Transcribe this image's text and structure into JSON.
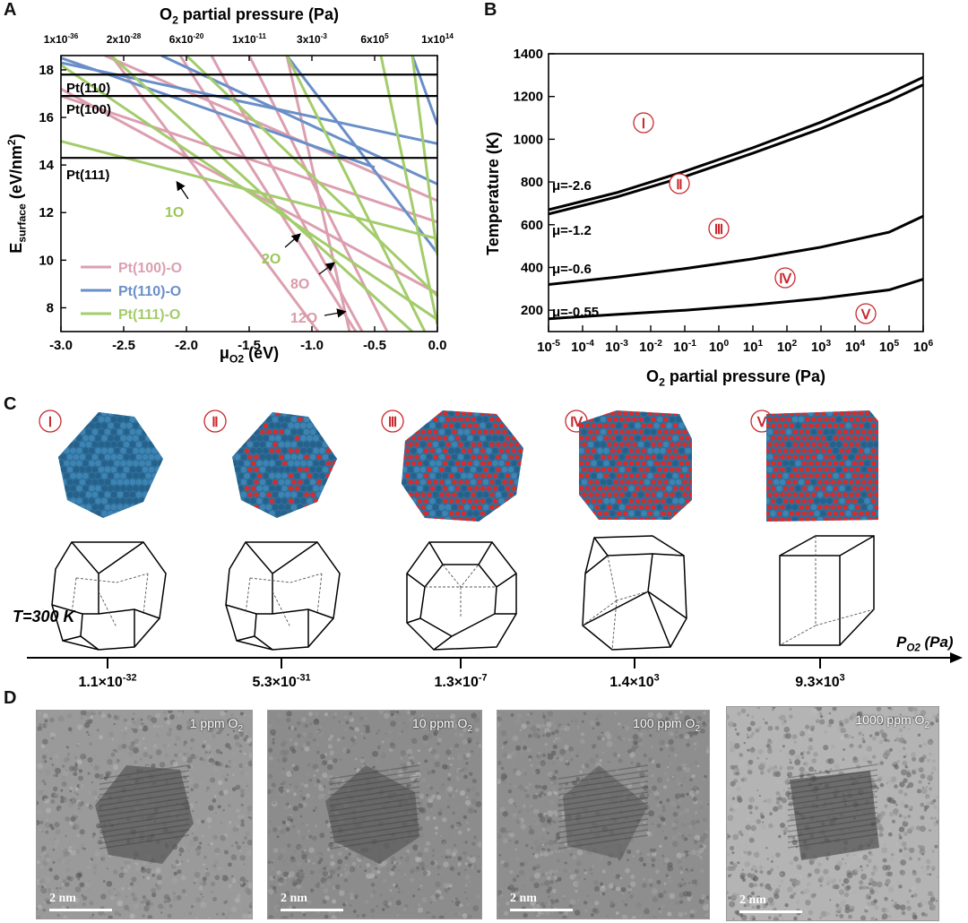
{
  "panels": {
    "a": "A",
    "b": "B",
    "c": "C",
    "d": "D"
  },
  "panelA": {
    "top_axis_title": "O2 partial pressure (Pa)",
    "top_ticks": [
      "1x10-36",
      "2x10-28",
      "6x10-20",
      "1x10-11",
      "3x10-3",
      "6x105",
      "1x1014"
    ],
    "xlabel": "μO2 (eV)",
    "ylabel": "Esurface (eV/nm2)",
    "x_ticks": [
      "-3.0",
      "-2.5",
      "-2.0",
      "-1.5",
      "-1.0",
      "-0.5",
      "0.0"
    ],
    "y_ticks": [
      "8",
      "10",
      "12",
      "14",
      "16",
      "18"
    ],
    "hlines": [
      {
        "label": "Pt(110)",
        "y": 17.8
      },
      {
        "label": "Pt(100)",
        "y": 16.9
      },
      {
        "label": "Pt(111)",
        "y": 14.3
      }
    ],
    "annotations": [
      {
        "text": "1O",
        "color": "#9cc65a"
      },
      {
        "text": "2O",
        "color": "#9cc65a"
      },
      {
        "text": "8O",
        "color": "#d99aa8"
      },
      {
        "text": "12O",
        "color": "#d99aa8"
      }
    ],
    "legend": [
      {
        "label": "Pt(100)-O",
        "color": "#dc9fb0"
      },
      {
        "label": "Pt(110)-O",
        "color": "#6a8fc8"
      },
      {
        "label": "Pt(111)-O",
        "color": "#a3cc6a"
      }
    ],
    "colors": {
      "pink": "#dc9fb0",
      "blue": "#6a8fc8",
      "green": "#a3cc6a"
    }
  },
  "chart_data": [
    {
      "type": "line",
      "title": "",
      "xlabel": "μO2 (eV)",
      "ylabel": "Esurface (eV/nm2)",
      "xlim": [
        -3.0,
        0.0
      ],
      "ylim": [
        7.0,
        18.6
      ],
      "series": [
        {
          "name": "Pt(100)-O",
          "segments": [
            [
              [
                -2.65,
                18.6
              ],
              [
                0.0,
                12.5
              ]
            ],
            [
              [
                -2.6,
                18.6
              ],
              [
                -0.95,
                7.0
              ]
            ],
            [
              [
                -2.05,
                18.6
              ],
              [
                -0.65,
                7.0
              ]
            ],
            [
              [
                -1.8,
                18.6
              ],
              [
                -0.6,
                7.0
              ]
            ],
            [
              [
                -1.5,
                18.6
              ],
              [
                -0.4,
                7.0
              ]
            ],
            [
              [
                -3.0,
                17.2
              ],
              [
                0.0,
                8.6
              ]
            ],
            [
              [
                -3.0,
                16.9
              ],
              [
                0.0,
                11.6
              ]
            ],
            [
              [
                -1.2,
                18.6
              ],
              [
                -0.7,
                7.0
              ]
            ]
          ]
        },
        {
          "name": "Pt(110)-O",
          "segments": [
            [
              [
                -3.0,
                18.3
              ],
              [
                0.0,
                14.9
              ]
            ],
            [
              [
                -3.0,
                18.5
              ],
              [
                -0.5,
                13.9
              ]
            ],
            [
              [
                -2.2,
                18.6
              ],
              [
                0.0,
                13.2
              ]
            ],
            [
              [
                -1.2,
                18.6
              ],
              [
                0.0,
                10.3
              ]
            ],
            [
              [
                -0.2,
                18.6
              ],
              [
                0.0,
                15.7
              ]
            ]
          ]
        },
        {
          "name": "Pt(111)-O",
          "segments": [
            [
              [
                -3.0,
                15.0
              ],
              [
                0.0,
                10.9
              ]
            ],
            [
              [
                -3.0,
                18.2
              ],
              [
                0.0,
                7.5
              ]
            ],
            [
              [
                -2.0,
                18.6
              ],
              [
                0.0,
                8.5
              ]
            ],
            [
              [
                -0.45,
                18.6
              ],
              [
                0.0,
                7.3
              ]
            ],
            [
              [
                -0.2,
                18.6
              ],
              [
                0.0,
                10.2
              ]
            ],
            [
              [
                -2.6,
                18.6
              ],
              [
                -0.2,
                7.0
              ]
            ],
            [
              [
                -1.2,
                18.6
              ],
              [
                -0.1,
                7.0
              ]
            ]
          ]
        }
      ]
    },
    {
      "type": "line",
      "title": "",
      "xlabel": "O2 partial pressure (Pa)",
      "ylabel": "Temperature (K)",
      "xscale": "log",
      "xlim": [
        1e-05,
        1000000.0
      ],
      "ylim": [
        100,
        1400
      ],
      "x_ticks": [
        "10-5",
        "10-4",
        "10-3",
        "10-2",
        "10-1",
        "100",
        "101",
        "102",
        "103",
        "104",
        "105",
        "106"
      ],
      "y_ticks": [
        "200",
        "400",
        "600",
        "800",
        "1000",
        "1200",
        "1400"
      ],
      "series": [
        {
          "name": "μ=-2.6",
          "x": [
            1e-05,
            0.001,
            0.1,
            10.0,
            1000.0,
            100000.0,
            1000000.0
          ],
          "y": [
            670,
            750,
            850,
            960,
            1080,
            1215,
            1290
          ]
        },
        {
          "name": "",
          "x": [
            1e-05,
            0.001,
            0.1,
            10.0,
            1000.0,
            100000.0,
            1000000.0
          ],
          "y": [
            650,
            730,
            825,
            935,
            1050,
            1180,
            1255
          ]
        },
        {
          "name": "μ=-1.2",
          "x": [
            1e-05,
            0.001,
            0.1,
            10.0,
            1000.0,
            100000.0,
            1000000.0
          ],
          "y": [
            320,
            355,
            395,
            440,
            495,
            565,
            640
          ]
        },
        {
          "name": "μ=-0.55",
          "x": [
            1e-05,
            0.001,
            0.1,
            10.0,
            1000.0,
            100000.0,
            1000000.0
          ],
          "y": [
            160,
            180,
            200,
            225,
            255,
            295,
            345
          ]
        }
      ],
      "curve_labels": [
        "μ=-2.6",
        "μ=-1.2",
        "μ=-0.6",
        "μ=-0.55"
      ],
      "regions": [
        "Ⅰ",
        "Ⅱ",
        "Ⅲ",
        "Ⅳ",
        "Ⅴ"
      ]
    }
  ],
  "panelC": {
    "stages": [
      {
        "numeral": "Ⅰ",
        "pressure": "1.1×10-32",
        "shape": "octa",
        "oxy": 0.0
      },
      {
        "numeral": "Ⅱ",
        "pressure": "5.3×10-31",
        "shape": "octa",
        "oxy": 0.25
      },
      {
        "numeral": "Ⅲ",
        "pressure": "1.3×10-7",
        "shape": "round",
        "oxy": 0.55
      },
      {
        "numeral": "Ⅳ",
        "pressure": "1.4×103",
        "shape": "cuboct",
        "oxy": 0.7
      },
      {
        "numeral": "Ⅴ",
        "pressure": "9.3×103",
        "shape": "cube",
        "oxy": 0.8
      }
    ],
    "temp_label": "T=300 K",
    "axis_label": "PO2 (Pa)",
    "colors": {
      "pt": "#2f6f9a",
      "o": "#d92b2b",
      "numeral": "#c8282e"
    }
  },
  "panelD": {
    "images": [
      {
        "label": "1 ppm O2",
        "scale": "2 nm",
        "bg": "#9a9a9a"
      },
      {
        "label": "10 ppm O2",
        "scale": "2 nm",
        "bg": "#8c8c8c"
      },
      {
        "label": "100 ppm O2",
        "scale": "2 nm",
        "bg": "#8e8e8e"
      },
      {
        "label": "1000 ppm O2",
        "scale": "2 nm",
        "bg": "#b4b4b4"
      }
    ]
  }
}
